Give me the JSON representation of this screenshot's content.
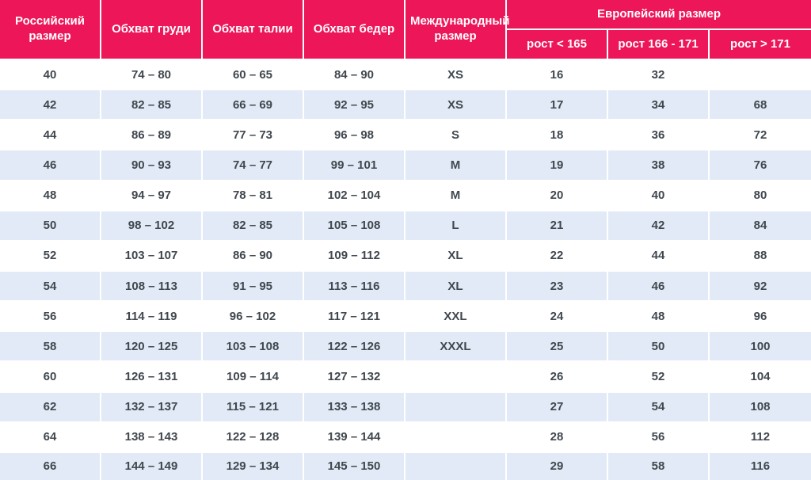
{
  "colors": {
    "header_bg": "#ED1659",
    "header_text": "#FFFFFF",
    "row_bg": "#FFFFFF",
    "row_alt_bg": "#E1EAF6",
    "body_text": "#40474E"
  },
  "chart_data": {
    "type": "table",
    "headers": {
      "russian_size": "Российский размер",
      "chest": "Обхват груди",
      "waist": "Обхват талии",
      "hips": "Обхват бедер",
      "international_size": "Международный размер",
      "european_size": "Европейский размер",
      "height_lt": "рост < 165",
      "height_mid": "рост 166 - 171",
      "height_gt": "рост > 171"
    },
    "rows": [
      [
        "40",
        "74 – 80",
        "60 – 65",
        "84 – 90",
        "XS",
        "16",
        "32",
        ""
      ],
      [
        "42",
        "82 – 85",
        "66 – 69",
        "92 – 95",
        "XS",
        "17",
        "34",
        "68"
      ],
      [
        "44",
        "86 – 89",
        "77 – 73",
        "96 – 98",
        "S",
        "18",
        "36",
        "72"
      ],
      [
        "46",
        "90 – 93",
        "74 – 77",
        "99 – 101",
        "M",
        "19",
        "38",
        "76"
      ],
      [
        "48",
        "94 – 97",
        "78 – 81",
        "102 – 104",
        "M",
        "20",
        "40",
        "80"
      ],
      [
        "50",
        "98 – 102",
        "82 – 85",
        "105 – 108",
        "L",
        "21",
        "42",
        "84"
      ],
      [
        "52",
        "103 – 107",
        "86 – 90",
        "109 – 112",
        "XL",
        "22",
        "44",
        "88"
      ],
      [
        "54",
        "108 – 113",
        "91 – 95",
        "113 – 116",
        "XL",
        "23",
        "46",
        "92"
      ],
      [
        "56",
        "114 – 119",
        "96 – 102",
        "117 – 121",
        "XXL",
        "24",
        "48",
        "96"
      ],
      [
        "58",
        "120 – 125",
        "103 – 108",
        "122 – 126",
        "XXXL",
        "25",
        "50",
        "100"
      ],
      [
        "60",
        "126 – 131",
        "109 – 114",
        "127 – 132",
        "",
        "26",
        "52",
        "104"
      ],
      [
        "62",
        "132 – 137",
        "115 – 121",
        "133 – 138",
        "",
        "27",
        "54",
        "108"
      ],
      [
        "64",
        "138 – 143",
        "122 – 128",
        "139 – 144",
        "",
        "28",
        "56",
        "112"
      ],
      [
        "66",
        "144 – 149",
        "129 – 134",
        "145 – 150",
        "",
        "29",
        "58",
        "116"
      ]
    ]
  }
}
